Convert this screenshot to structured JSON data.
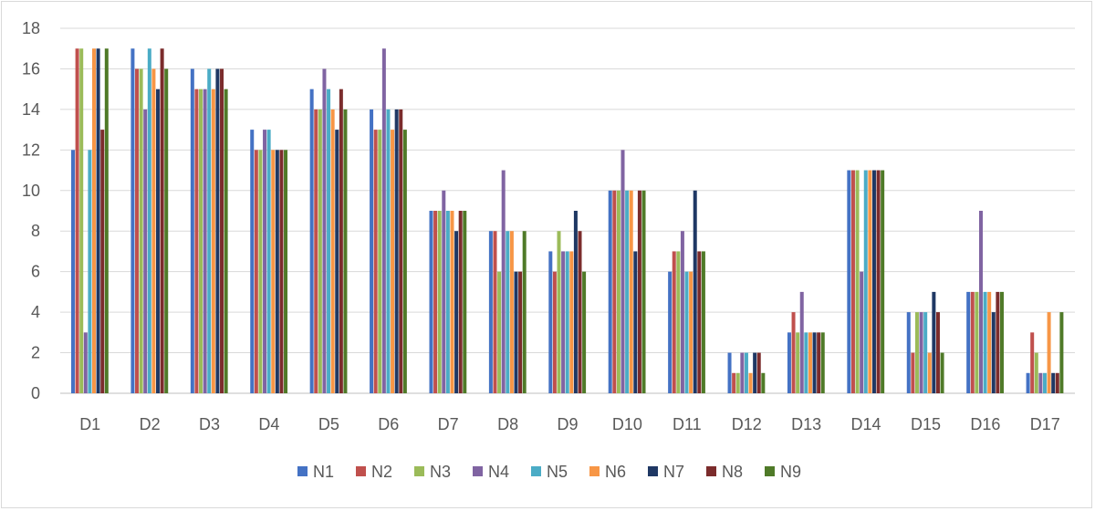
{
  "chart_data": {
    "type": "bar",
    "title": "",
    "xlabel": "",
    "ylabel": "",
    "ylim": [
      0,
      18
    ],
    "yticks": [
      0,
      2,
      4,
      6,
      8,
      10,
      12,
      14,
      16,
      18
    ],
    "grid": true,
    "legend": "bottom",
    "categories": [
      "D1",
      "D2",
      "D3",
      "D4",
      "D5",
      "D6",
      "D7",
      "D8",
      "D9",
      "D10",
      "D11",
      "D12",
      "D13",
      "D14",
      "D15",
      "D16",
      "D17"
    ],
    "series": [
      {
        "name": "N1",
        "color": "#4472C4",
        "values": [
          12,
          17,
          16,
          13,
          15,
          14,
          9,
          8,
          7,
          10,
          6,
          2,
          3,
          11,
          4,
          5,
          1
        ]
      },
      {
        "name": "N2",
        "color": "#C0504D",
        "values": [
          17,
          16,
          15,
          12,
          14,
          13,
          9,
          8,
          6,
          10,
          7,
          1,
          4,
          11,
          2,
          5,
          3
        ]
      },
      {
        "name": "N3",
        "color": "#9BBB59",
        "values": [
          17,
          16,
          15,
          12,
          14,
          13,
          9,
          6,
          8,
          10,
          7,
          1,
          3,
          11,
          4,
          5,
          2
        ]
      },
      {
        "name": "N4",
        "color": "#8064A2",
        "values": [
          3,
          14,
          15,
          13,
          16,
          17,
          10,
          11,
          7,
          12,
          8,
          2,
          5,
          6,
          4,
          9,
          1
        ]
      },
      {
        "name": "N5",
        "color": "#4BACC6",
        "values": [
          12,
          17,
          16,
          13,
          15,
          14,
          9,
          8,
          7,
          10,
          6,
          2,
          3,
          11,
          4,
          5,
          1
        ]
      },
      {
        "name": "N6",
        "color": "#F79646",
        "values": [
          17,
          16,
          15,
          12,
          14,
          13,
          9,
          8,
          7,
          10,
          6,
          1,
          3,
          11,
          2,
          5,
          4
        ]
      },
      {
        "name": "N7",
        "color": "#1F3864",
        "values": [
          17,
          15,
          16,
          12,
          13,
          14,
          8,
          6,
          9,
          7,
          10,
          2,
          3,
          11,
          5,
          4,
          1
        ]
      },
      {
        "name": "N8",
        "color": "#7B2C2C",
        "values": [
          13,
          17,
          16,
          12,
          15,
          14,
          9,
          6,
          8,
          10,
          7,
          2,
          3,
          11,
          4,
          5,
          1
        ]
      },
      {
        "name": "N9",
        "color": "#4F7A28",
        "values": [
          17,
          16,
          15,
          12,
          14,
          13,
          9,
          8,
          6,
          10,
          7,
          1,
          3,
          11,
          2,
          5,
          4
        ]
      }
    ]
  }
}
